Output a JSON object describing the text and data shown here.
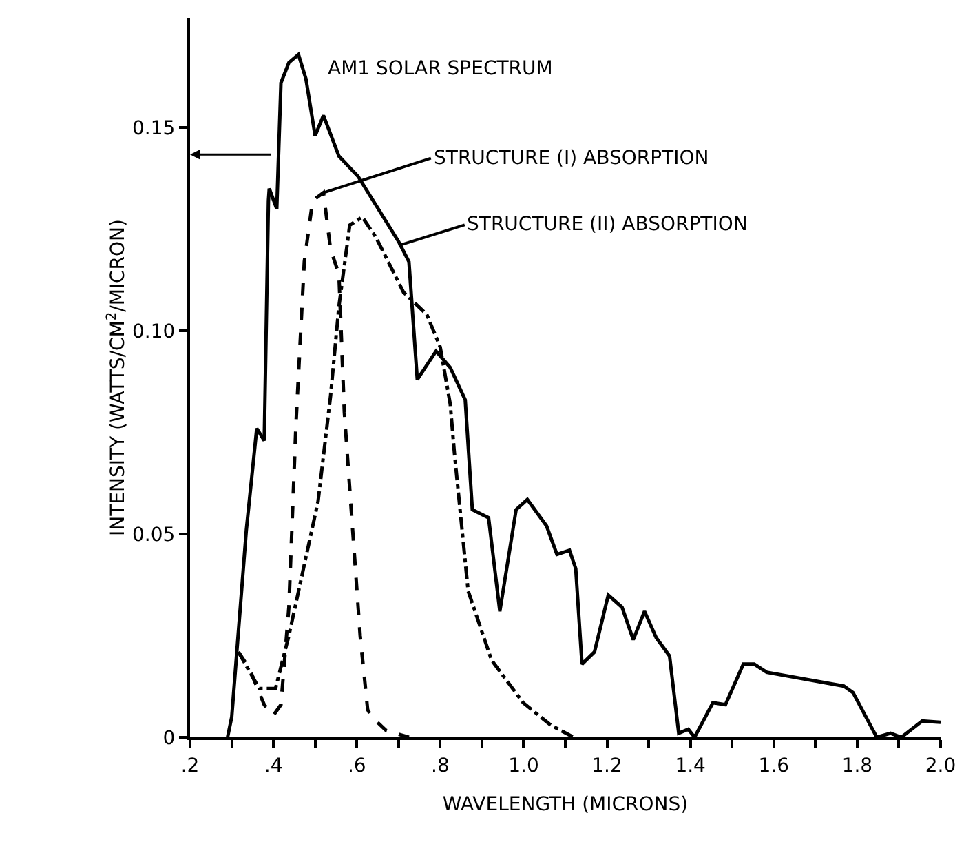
{
  "chart_data": {
    "type": "line",
    "xlabel": "WAVELENGTH (MICRONS)",
    "ylabel": "INTENSITY (WATTS/CM$^{2}$/MICRON)",
    "xlim": [
      0.2,
      2.0
    ],
    "ylim": [
      0,
      0.177
    ],
    "xticks": [
      {
        "value": 0.2,
        "label": ".2"
      },
      {
        "value": 0.3,
        "label": null
      },
      {
        "value": 0.4,
        "label": ".4"
      },
      {
        "value": 0.5,
        "label": null
      },
      {
        "value": 0.6,
        "label": ".6"
      },
      {
        "value": 0.7,
        "label": null
      },
      {
        "value": 0.8,
        "label": ".8"
      },
      {
        "value": 0.9,
        "label": null
      },
      {
        "value": 1.0,
        "label": "1.0"
      },
      {
        "value": 1.1,
        "label": null
      },
      {
        "value": 1.2,
        "label": "1.2"
      },
      {
        "value": 1.3,
        "label": null
      },
      {
        "value": 1.4,
        "label": "1.4"
      },
      {
        "value": 1.5,
        "label": null
      },
      {
        "value": 1.6,
        "label": "1.6"
      },
      {
        "value": 1.7,
        "label": null
      },
      {
        "value": 1.8,
        "label": "1.8"
      },
      {
        "value": 1.9,
        "label": null
      },
      {
        "value": 2.0,
        "label": "2.0"
      }
    ],
    "yticks": [
      0,
      {
        "value": 0.05,
        "label": "0.05"
      },
      {
        "value": 0.1,
        "label": "0.10"
      },
      {
        "value": 0.15,
        "label": "0.15"
      }
    ],
    "marker": "none",
    "series": [
      {
        "color": "#000000",
        "line_style": "solid",
        "x": [
          0.29,
          0.3,
          0.335,
          0.36,
          0.378,
          0.388,
          0.39,
          0.408,
          0.418,
          0.437,
          0.46,
          0.478,
          0.5,
          0.52,
          0.557,
          0.603,
          0.7,
          0.725,
          0.745,
          0.79,
          0.824,
          0.86,
          0.877,
          0.916,
          0.943,
          0.982,
          1.009,
          1.055,
          1.08,
          1.11,
          1.125,
          1.14,
          1.17,
          1.203,
          1.236,
          1.263,
          1.29,
          1.318,
          1.35,
          1.372,
          1.395,
          1.41,
          1.454,
          1.484,
          1.527,
          1.553,
          1.583,
          1.768,
          1.79,
          1.847,
          1.88,
          1.906,
          1.956,
          2.0
        ],
        "values": [
          0,
          0.005,
          0.051,
          0.076,
          0.073,
          0.132,
          0.135,
          0.13,
          0.161,
          0.166,
          0.168,
          0.162,
          0.148,
          0.153,
          0.143,
          0.138,
          0.122,
          0.117,
          0.088,
          0.095,
          0.091,
          0.083,
          0.056,
          0.054,
          0.031,
          0.056,
          0.0585,
          0.052,
          0.045,
          0.046,
          0.0415,
          0.018,
          0.021,
          0.035,
          0.032,
          0.024,
          0.031,
          0.0245,
          0.02,
          0.001,
          0.002,
          0,
          0.0085,
          0.008,
          0.018,
          0.018,
          0.016,
          0.0126,
          0.011,
          0,
          0.001,
          0,
          0.004,
          0.0037
        ]
      },
      {
        "color": "#000000",
        "line_style": "dashed",
        "x": [
          0.316,
          0.342,
          0.378,
          0.4,
          0.418,
          0.437,
          0.454,
          0.474,
          0.494,
          0.52,
          0.537,
          0.557,
          0.57,
          0.59,
          0.608,
          0.626,
          0.636,
          0.67,
          0.725
        ],
        "values": [
          0.021,
          0.017,
          0.008,
          0.0054,
          0.008,
          0.032,
          0.077,
          0.117,
          0.132,
          0.134,
          0.12,
          0.114,
          0.08,
          0.051,
          0.025,
          0.0068,
          0.005,
          0.0017,
          0
        ]
      },
      {
        "color": "#000000",
        "line_style": "dashdot",
        "x": [
          0.316,
          0.366,
          0.405,
          0.437,
          0.507,
          0.537,
          0.557,
          0.583,
          0.613,
          0.646,
          0.712,
          0.768,
          0.8,
          0.824,
          0.834,
          0.867,
          0.923,
          0.999,
          1.065,
          1.12
        ],
        "values": [
          0.021,
          0.012,
          0.012,
          0.025,
          0.058,
          0.084,
          0.106,
          0.126,
          0.128,
          0.123,
          0.1095,
          0.104,
          0.096,
          0.082,
          0.07,
          0.036,
          0.019,
          0.0085,
          0.003,
          0
        ]
      }
    ],
    "annotations": [
      "AM1 SOLAR SPECTRUM",
      {
        "text": "STRUCTURE (I) ABSORPTION",
        "x": 0.52,
        "y": 0.134
      },
      {
        "text": "STRUCTURE (II) ABSORPTION",
        "x": 0.7,
        "y": 0.121
      }
    ]
  }
}
